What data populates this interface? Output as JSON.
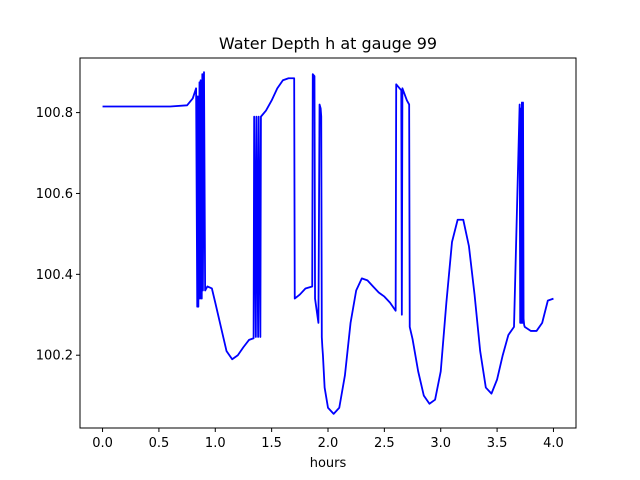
{
  "chart_data": {
    "type": "line",
    "title": "Water Depth h at gauge 99",
    "xlabel": "hours",
    "ylabel": "",
    "xlim": [
      -0.2,
      4.2
    ],
    "ylim": [
      100.02,
      100.935
    ],
    "xticks": [
      0.0,
      0.5,
      1.0,
      1.5,
      2.0,
      2.5,
      3.0,
      3.5,
      4.0
    ],
    "xtick_labels": [
      "0.0",
      "0.5",
      "1.0",
      "1.5",
      "2.0",
      "2.5",
      "3.0",
      "3.5",
      "4.0"
    ],
    "yticks": [
      100.2,
      100.4,
      100.6,
      100.8
    ],
    "ytick_labels": [
      "100.2",
      "100.4",
      "100.6",
      "100.8"
    ],
    "grid": false,
    "series": [
      {
        "color": "#0000ff",
        "x": [
          0.0,
          0.3,
          0.6,
          0.75,
          0.8,
          0.83,
          0.84,
          0.845,
          0.85,
          0.86,
          0.865,
          0.87,
          0.88,
          0.885,
          0.89,
          0.9,
          0.91,
          0.93,
          0.97,
          1.0,
          1.05,
          1.1,
          1.15,
          1.2,
          1.25,
          1.3,
          1.34,
          1.345,
          1.36,
          1.365,
          1.38,
          1.385,
          1.4,
          1.405,
          1.42,
          1.45,
          1.5,
          1.55,
          1.6,
          1.65,
          1.7,
          1.705,
          1.75,
          1.8,
          1.86,
          1.865,
          1.88,
          1.885,
          1.9,
          1.915,
          1.925,
          1.935,
          1.94,
          1.945,
          1.95,
          1.955,
          1.97,
          2.0,
          2.05,
          2.1,
          2.15,
          2.2,
          2.25,
          2.3,
          2.35,
          2.4,
          2.45,
          2.5,
          2.55,
          2.6,
          2.605,
          2.65,
          2.655,
          2.66,
          2.7,
          2.72,
          2.725,
          2.75,
          2.8,
          2.85,
          2.9,
          2.95,
          3.0,
          3.05,
          3.1,
          3.15,
          3.2,
          3.25,
          3.3,
          3.35,
          3.4,
          3.45,
          3.5,
          3.55,
          3.6,
          3.65,
          3.7,
          3.705,
          3.71,
          3.715,
          3.72,
          3.725,
          3.73,
          3.735,
          3.74,
          3.745,
          3.8,
          3.85,
          3.9,
          3.95,
          4.0
        ],
        "y": [
          100.815,
          100.815,
          100.815,
          100.818,
          100.835,
          100.86,
          100.32,
          100.84,
          100.32,
          100.875,
          100.34,
          100.88,
          100.34,
          100.895,
          100.36,
          100.9,
          100.36,
          100.37,
          100.365,
          100.33,
          100.27,
          100.21,
          100.19,
          100.2,
          100.22,
          100.238,
          100.242,
          100.79,
          100.245,
          100.79,
          100.245,
          100.79,
          100.245,
          100.79,
          100.795,
          100.805,
          100.83,
          100.86,
          100.88,
          100.885,
          100.885,
          100.34,
          100.35,
          100.365,
          100.37,
          100.895,
          100.89,
          100.34,
          100.31,
          100.28,
          100.82,
          100.81,
          100.79,
          100.245,
          100.22,
          100.2,
          100.12,
          100.07,
          100.055,
          100.07,
          100.15,
          100.28,
          100.36,
          100.39,
          100.385,
          100.37,
          100.355,
          100.345,
          100.33,
          100.31,
          100.87,
          100.855,
          100.3,
          100.86,
          100.83,
          100.82,
          100.27,
          100.24,
          100.16,
          100.1,
          100.08,
          100.09,
          100.16,
          100.33,
          100.48,
          100.535,
          100.535,
          100.47,
          100.35,
          100.21,
          100.12,
          100.105,
          100.14,
          100.2,
          100.25,
          100.27,
          100.82,
          100.28,
          100.81,
          100.28,
          100.825,
          100.28,
          100.825,
          100.29,
          100.275,
          100.27,
          100.26,
          100.26,
          100.28,
          100.335,
          100.34
        ]
      }
    ]
  }
}
